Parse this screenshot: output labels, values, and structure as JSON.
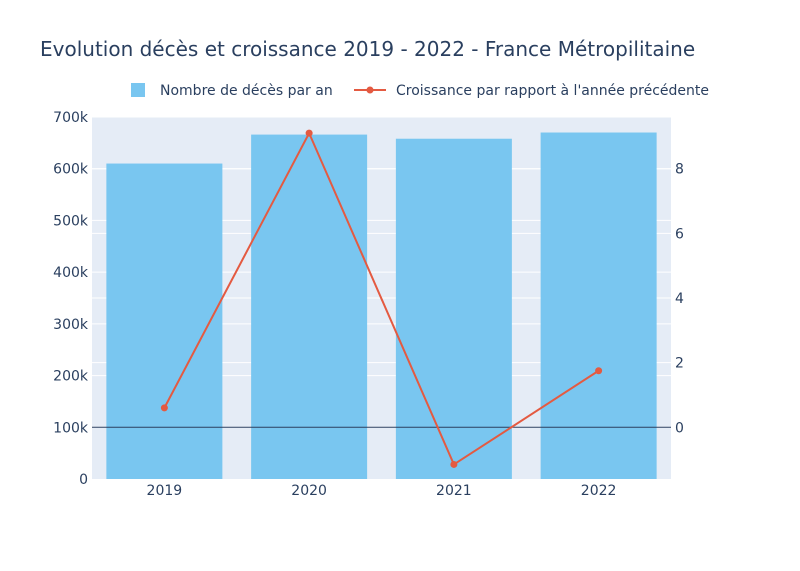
{
  "chart_data": {
    "type": "bar",
    "title": "Evolution décès et croissance 2019 - 2022 - France Métropilitaine",
    "categories": [
      "2019",
      "2020",
      "2021",
      "2022"
    ],
    "series": [
      {
        "name": "Nombre de décès par an",
        "type": "bar",
        "axis": "left",
        "values": [
          610000,
          666000,
          658000,
          670000
        ]
      },
      {
        "name": "Croissance par rapport à l'année précédente",
        "type": "line",
        "axis": "right",
        "values": [
          0.6,
          9.1,
          -1.15,
          1.75
        ]
      }
    ],
    "y_left": {
      "range": [
        0,
        700000
      ],
      "ticks": [
        0,
        100000,
        200000,
        300000,
        400000,
        500000,
        600000,
        700000
      ],
      "tick_labels": [
        "0",
        "100k",
        "200k",
        "300k",
        "400k",
        "500k",
        "600k",
        "700k"
      ]
    },
    "y_right": {
      "range": [
        -1.6,
        9.6
      ],
      "ticks": [
        0,
        2,
        4,
        6,
        8
      ],
      "tick_labels": [
        "0",
        "2",
        "4",
        "6",
        "8"
      ]
    },
    "grid": true,
    "legend_position": "top",
    "colors": {
      "bar": "#79c6f0",
      "line": "#e45a41",
      "plot_background": "#e5ecf6",
      "grid": "#ffffff",
      "zero_line": "#2a3f5f",
      "text": "#2a3f5f"
    }
  }
}
